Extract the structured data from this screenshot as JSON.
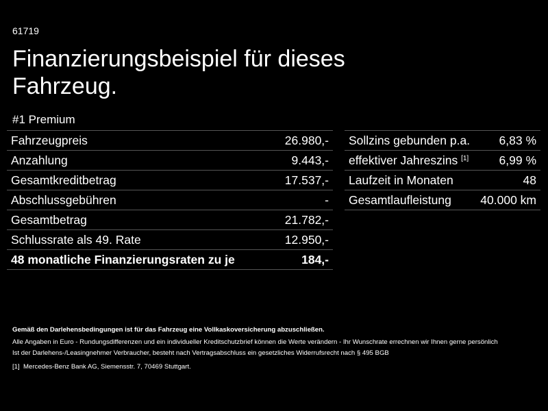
{
  "code": "61719",
  "title": "Finanzierungsbeispiel für dieses Fahrzeug.",
  "subtitle": "#1 Premium",
  "left_table": {
    "rows": [
      [
        "Fahrzeugpreis",
        "26.980,-"
      ],
      [
        "Anzahlung",
        "9.443,-"
      ],
      [
        "Gesamtkreditbetrag",
        "17.537,-"
      ],
      [
        "Abschlussgebühren",
        "-"
      ],
      [
        "Gesamtbetrag",
        "21.782,-"
      ],
      [
        "Schlussrate als 49. Rate",
        "12.950,-"
      ],
      [
        "48 monatliche Finanzierungsraten zu je",
        "184,-"
      ]
    ]
  },
  "right_table": {
    "rows": [
      {
        "label": "Sollzins gebunden p.a.",
        "value": "6,83 %"
      },
      {
        "label": "effektiver Jahreszins",
        "sup": "[1]",
        "value": "6,99 %"
      },
      {
        "label": "Laufzeit in Monaten",
        "value": "48"
      },
      {
        "label": "Gesamtlaufleistung",
        "value": "40.000 km"
      }
    ]
  },
  "footnotes": {
    "bold": "Gemäß den Darlehensbedingungen ist für das Fahrzeug eine Vollkaskoversicherung abzuschließen.",
    "line1": "Alle Angaben in Euro - Rundungsdifferenzen und ein individueller Kreditschutzbrief können die Werte verändern - Ihr Wunschrate errechnen wir Ihnen gerne persönlich",
    "line2": "Ist der Darlehens-/Leasingnehmer Verbraucher, besteht nach Vertragsabschluss ein gesetzliches Widerrufsrecht nach § 495 BGB",
    "ref_marker": "[1]",
    "ref_text": "Mercedes-Benz Bank AG, Siemensstr. 7, 70469 Stuttgart."
  }
}
